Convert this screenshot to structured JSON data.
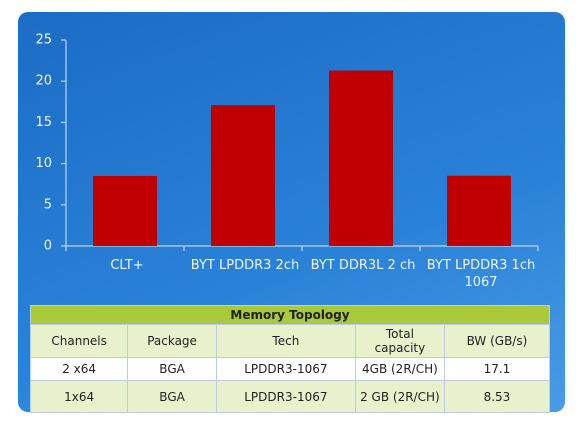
{
  "chart_data": {
    "type": "bar",
    "categories": [
      "CLT+",
      "BYT LPDDR3 2ch",
      "BYT DDR3L 2 ch",
      "BYT LPDDR3 1ch 1067"
    ],
    "values": [
      8.5,
      17.1,
      21.3,
      8.53
    ],
    "color": "#c00000",
    "ylim": [
      0,
      25
    ],
    "yticks": [
      0,
      5,
      10,
      15,
      20,
      25
    ],
    "grid": false
  },
  "table": {
    "title": "Memory Topology",
    "columns": [
      "Channels",
      "Package",
      "Tech",
      "Total capacity",
      "BW (GB/s)"
    ],
    "rows": [
      [
        "2 x64",
        "BGA",
        "LPDDR3-1067",
        "4GB (2R/CH)",
        "17.1"
      ],
      [
        "1x64",
        "BGA",
        "LPDDR3-1067",
        "2 GB (2R/CH)",
        "8.53"
      ]
    ]
  }
}
